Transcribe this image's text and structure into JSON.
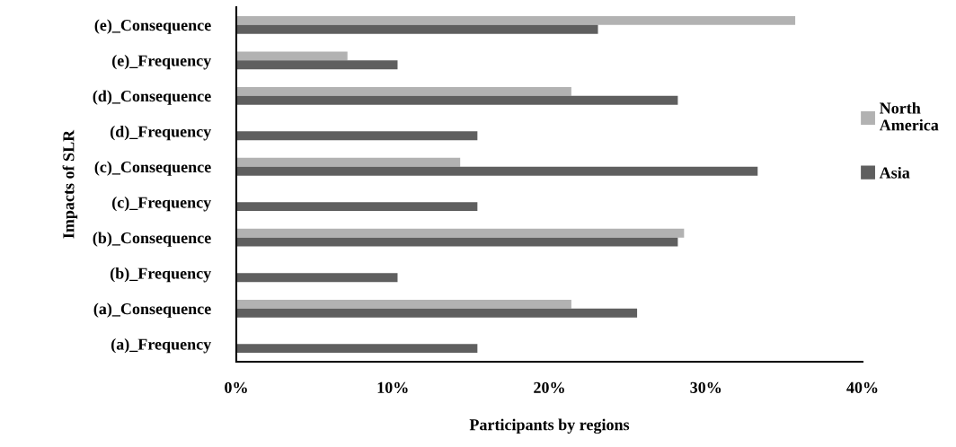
{
  "chart_data": {
    "type": "bar",
    "orientation": "horizontal",
    "xlabel": "Participants by regions",
    "ylabel": "Impacts of SLR",
    "categories": [
      "(e)_Consequence",
      "(e)_Frequency",
      "(d)_Consequence",
      "(d)_Frequency",
      "(c)_Consequence",
      "(c)_Frequency",
      "(b)_Consequence",
      "(b)_Frequency",
      "(a)_Consequence",
      "(a)_Frequency"
    ],
    "series": [
      {
        "name": "North America",
        "color": "#b2b2b2",
        "values": [
          35.7,
          7.1,
          21.4,
          0,
          14.3,
          0,
          28.6,
          0,
          21.4,
          0
        ]
      },
      {
        "name": "Asia",
        "color": "#5f5f5f",
        "values": [
          23.1,
          10.3,
          28.2,
          15.4,
          33.3,
          15.4,
          28.2,
          10.3,
          25.6,
          15.4
        ]
      }
    ],
    "xlim": [
      0,
      40
    ],
    "xticks": [
      {
        "value": 0,
        "label": "0%"
      },
      {
        "value": 10,
        "label": "10%"
      },
      {
        "value": 20,
        "label": "20%"
      },
      {
        "value": 30,
        "label": "30%"
      },
      {
        "value": 40,
        "label": "40%"
      }
    ],
    "legend": "right",
    "grid": false
  }
}
